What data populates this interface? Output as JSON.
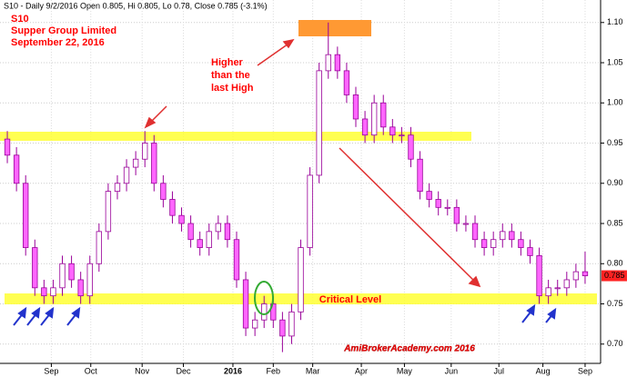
{
  "chart_data": {
    "type": "candlestick",
    "title": "S10 - Daily 9/2/2016 Open 0.805, Hi 0.805, Lo 0.78, Close 0.785 (-3.1%)",
    "annotations": [
      "S10",
      "Supper Group Limited",
      "September 22, 2016",
      "Higher",
      "than the",
      "last High",
      "Critical Level",
      "AmiBrokerAcademy.com  2016"
    ],
    "up_color": "#ffffff",
    "down_color": "#ff66ff",
    "wick_color": "#990099",
    "open": [
      0.955,
      0.935,
      0.9,
      0.82,
      0.77,
      0.76,
      0.77,
      0.8,
      0.78,
      0.76,
      0.8,
      0.84,
      0.89,
      0.9,
      0.92,
      0.93,
      0.95,
      0.9,
      0.88,
      0.86,
      0.85,
      0.83,
      0.82,
      0.84,
      0.85,
      0.83,
      0.78,
      0.72,
      0.73,
      0.75,
      0.73,
      0.71,
      0.74,
      0.82,
      0.91,
      1.04,
      1.06,
      1.04,
      1.01,
      0.98,
      0.96,
      1.0,
      0.97,
      0.96,
      0.96,
      0.93,
      0.89,
      0.88,
      0.87,
      0.87,
      0.85,
      0.85,
      0.83,
      0.82,
      0.83,
      0.84,
      0.83,
      0.82,
      0.81,
      0.76,
      0.77,
      0.77,
      0.78,
      0.79
    ],
    "high": [
      0.965,
      0.945,
      0.91,
      0.83,
      0.78,
      0.78,
      0.81,
      0.81,
      0.79,
      0.81,
      0.85,
      0.9,
      0.91,
      0.93,
      0.94,
      0.965,
      0.96,
      0.91,
      0.89,
      0.87,
      0.86,
      0.84,
      0.85,
      0.86,
      0.86,
      0.84,
      0.79,
      0.74,
      0.76,
      0.76,
      0.74,
      0.75,
      0.83,
      0.92,
      1.05,
      1.1,
      1.07,
      1.05,
      1.02,
      0.99,
      1.01,
      1.01,
      0.98,
      0.97,
      0.97,
      0.94,
      0.9,
      0.89,
      0.88,
      0.88,
      0.86,
      0.86,
      0.84,
      0.84,
      0.85,
      0.85,
      0.84,
      0.83,
      0.82,
      0.78,
      0.78,
      0.79,
      0.8,
      0.815
    ],
    "low": [
      0.925,
      0.89,
      0.81,
      0.76,
      0.75,
      0.75,
      0.76,
      0.77,
      0.75,
      0.75,
      0.79,
      0.83,
      0.88,
      0.89,
      0.91,
      0.92,
      0.89,
      0.87,
      0.85,
      0.84,
      0.82,
      0.81,
      0.81,
      0.83,
      0.82,
      0.77,
      0.71,
      0.71,
      0.72,
      0.72,
      0.69,
      0.7,
      0.73,
      0.81,
      0.9,
      1.03,
      1.03,
      1.0,
      0.97,
      0.95,
      0.95,
      0.96,
      0.95,
      0.95,
      0.92,
      0.88,
      0.87,
      0.86,
      0.86,
      0.84,
      0.84,
      0.82,
      0.81,
      0.81,
      0.82,
      0.82,
      0.81,
      0.8,
      0.75,
      0.75,
      0.76,
      0.76,
      0.77,
      0.775
    ],
    "close": [
      0.935,
      0.9,
      0.82,
      0.77,
      0.76,
      0.77,
      0.8,
      0.78,
      0.76,
      0.8,
      0.84,
      0.89,
      0.9,
      0.92,
      0.93,
      0.95,
      0.9,
      0.88,
      0.86,
      0.85,
      0.83,
      0.82,
      0.84,
      0.85,
      0.83,
      0.78,
      0.72,
      0.73,
      0.75,
      0.73,
      0.71,
      0.74,
      0.82,
      0.91,
      1.04,
      1.06,
      1.04,
      1.01,
      0.98,
      0.96,
      1.0,
      0.97,
      0.96,
      0.96,
      0.93,
      0.89,
      0.88,
      0.87,
      0.87,
      0.85,
      0.85,
      0.83,
      0.82,
      0.83,
      0.84,
      0.83,
      0.82,
      0.81,
      0.76,
      0.77,
      0.77,
      0.78,
      0.79,
      0.785
    ],
    "xlim": [
      -0.5,
      63.5
    ],
    "xticks": [
      {
        "value": 4.8,
        "label": "Sep"
      },
      {
        "value": 9.1,
        "label": "Oct"
      },
      {
        "value": 14.7,
        "label": "Nov"
      },
      {
        "value": 19.2,
        "label": "Dec"
      },
      {
        "value": 24.6,
        "label": "2016"
      },
      {
        "value": 29.0,
        "label": "Feb"
      },
      {
        "value": 33.3,
        "label": "Mar"
      },
      {
        "value": 38.6,
        "label": "Apr"
      },
      {
        "value": 43.3,
        "label": "May"
      },
      {
        "value": 48.4,
        "label": "Jun"
      },
      {
        "value": 53.6,
        "label": "Jul"
      },
      {
        "value": 58.4,
        "label": "Aug"
      },
      {
        "value": 63.0,
        "label": "Sep"
      }
    ],
    "ylim": [
      0.676,
      1.128
    ],
    "yticks": [
      {
        "value": 0.7,
        "label": "0.70"
      },
      0.75,
      {
        "value": 0.8,
        "label": "0.80"
      },
      0.85,
      {
        "value": 0.9,
        "label": "0.90"
      },
      0.95,
      {
        "value": 1.0,
        "label": "1.00"
      },
      1.05,
      {
        "value": 1.1,
        "label": "1.10"
      }
    ],
    "grid": true
  }
}
